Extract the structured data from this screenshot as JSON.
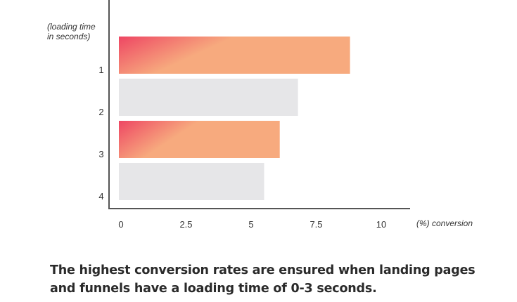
{
  "chart_data": {
    "type": "bar",
    "orientation": "horizontal",
    "categories": [
      "1",
      "2",
      "3",
      "4"
    ],
    "values": [
      8.8,
      6.8,
      6.1,
      5.5
    ],
    "highlighted": [
      true,
      false,
      true,
      false
    ],
    "ylabel": "(loading time in seconds)",
    "ylabel_lines": [
      "(loading time",
      "in seconds)"
    ],
    "xlabel": "(%) conversion",
    "xticks": [
      "0",
      "2.5",
      "5",
      "7.5",
      "10"
    ],
    "xlim": [
      0,
      10
    ],
    "grid": false,
    "colors": {
      "highlight_start": "#ee4663",
      "highlight_end": "#f7aa7e",
      "muted": "#e6e6e8",
      "axis": "#555555"
    }
  },
  "caption": "The highest conversion rates are ensured when landing pages and funnels have a loading time of 0-3 seconds."
}
